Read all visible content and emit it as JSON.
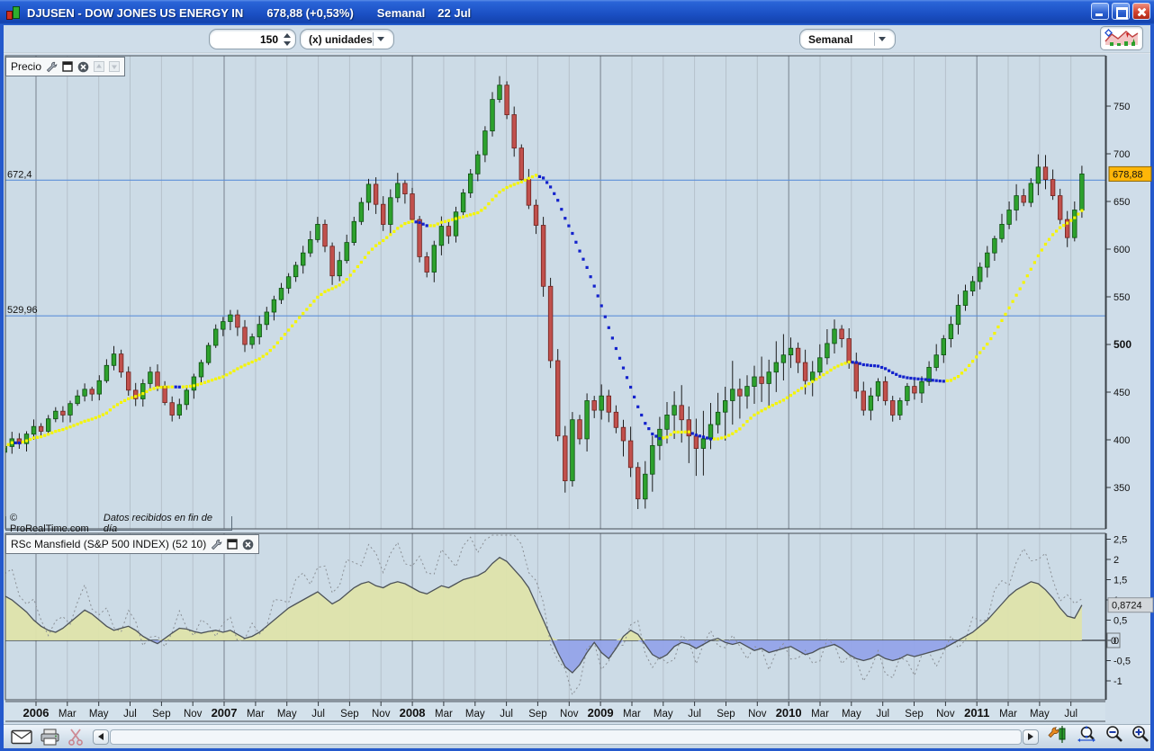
{
  "window": {
    "title": "DJUSEN - DOW JONES US ENERGY IN",
    "quote": "678,88 (+0,53%)",
    "timeframe": "Semanal",
    "date": "22 Jul"
  },
  "toolbar": {
    "units_value": "150",
    "units_mode": "(x) unidades",
    "period": "Semanal"
  },
  "price_panel": {
    "label": "Precio",
    "footer_copyright": "© ProRealTime.com",
    "footer_note": "Datos recibidos en fin de día"
  },
  "indicator_panel": {
    "label": "RSc Mansfield (S&P 500 INDEX) (52 10)"
  },
  "icons": [
    "candlestick-logo-icon",
    "minimize-icon",
    "maximize-icon",
    "close-icon",
    "chart-style-icon",
    "wrench-icon",
    "panel-icon",
    "close-circle-icon",
    "arrow-up-icon",
    "arrow-down-icon",
    "envelope-icon",
    "printer-icon",
    "scissors-icon",
    "scroll-left-icon",
    "scroll-right-icon",
    "chart-settings-icon",
    "zoom-fit-icon",
    "zoom-out-icon",
    "zoom-in-icon"
  ],
  "colors": {
    "panel_bg": "#ccdbe6",
    "grid_minor": "#b5c1cb",
    "grid_year": "#77818d",
    "level_line": "#5e90d8",
    "candle_up": "#2da12d",
    "candle_down": "#c1504c",
    "ma_up": "#f5f500",
    "ma_down": "#1322cc",
    "area_pos": "#dee4ab",
    "area_neg": "#94a4e9",
    "badge_price": "#ffb608",
    "badge_indicator": "#d3d7db"
  },
  "chart_data": {
    "type": "candlestick",
    "title": "DJUSEN - DOW JONES US ENERGY IN (Semanal)",
    "x": {
      "start_month": -2,
      "end_month": 66.7,
      "ticks": [
        {
          "m": 0,
          "label": "2006",
          "bold": true
        },
        {
          "m": 2,
          "label": "Mar"
        },
        {
          "m": 4,
          "label": "May"
        },
        {
          "m": 6,
          "label": "Jul"
        },
        {
          "m": 8,
          "label": "Sep"
        },
        {
          "m": 10,
          "label": "Nov"
        },
        {
          "m": 12,
          "label": "2007",
          "bold": true
        },
        {
          "m": 14,
          "label": "Mar"
        },
        {
          "m": 16,
          "label": "May"
        },
        {
          "m": 18,
          "label": "Jul"
        },
        {
          "m": 20,
          "label": "Sep"
        },
        {
          "m": 22,
          "label": "Nov"
        },
        {
          "m": 24,
          "label": "2008",
          "bold": true
        },
        {
          "m": 26,
          "label": "Mar"
        },
        {
          "m": 28,
          "label": "May"
        },
        {
          "m": 30,
          "label": "Jul"
        },
        {
          "m": 32,
          "label": "Sep"
        },
        {
          "m": 34,
          "label": "Nov"
        },
        {
          "m": 36,
          "label": "2009",
          "bold": true
        },
        {
          "m": 38,
          "label": "Mar"
        },
        {
          "m": 40,
          "label": "May"
        },
        {
          "m": 42,
          "label": "Jul"
        },
        {
          "m": 44,
          "label": "Sep"
        },
        {
          "m": 46,
          "label": "Nov"
        },
        {
          "m": 48,
          "label": "2010",
          "bold": true
        },
        {
          "m": 50,
          "label": "Mar"
        },
        {
          "m": 52,
          "label": "May"
        },
        {
          "m": 54,
          "label": "Jul"
        },
        {
          "m": 56,
          "label": "Sep"
        },
        {
          "m": 58,
          "label": "Nov"
        },
        {
          "m": 60,
          "label": "2011",
          "bold": true
        },
        {
          "m": 62,
          "label": "Mar"
        },
        {
          "m": 64,
          "label": "May"
        },
        {
          "m": 66,
          "label": "Jul"
        }
      ]
    },
    "price": {
      "ylim": [
        306,
        803
      ],
      "axis_ticks": [
        750,
        700,
        650,
        600,
        550,
        500,
        450,
        400,
        350
      ],
      "bold_tick": 500,
      "levels": [
        672.4,
        529.96
      ],
      "last": 678.88,
      "ma_window": 15,
      "closes": [
        393,
        401,
        396,
        406,
        414,
        409,
        422,
        430,
        426,
        438,
        446,
        453,
        448,
        462,
        478,
        490,
        471,
        452,
        443,
        459,
        471,
        456,
        439,
        426,
        437,
        452,
        466,
        481,
        499,
        516,
        524,
        531,
        518,
        500,
        508,
        521,
        534,
        547,
        559,
        571,
        583,
        596,
        610,
        626,
        603,
        572,
        588,
        607,
        629,
        649,
        668,
        647,
        626,
        654,
        669,
        658,
        631,
        592,
        576,
        604,
        624,
        614,
        639,
        659,
        679,
        699,
        724,
        757,
        772,
        741,
        706,
        673,
        646,
        625,
        561,
        483,
        404,
        357,
        421,
        401,
        441,
        431,
        446,
        429,
        413,
        399,
        371,
        338,
        364,
        394,
        411,
        426,
        436,
        421,
        404,
        391,
        401,
        416,
        429,
        441,
        453,
        446,
        456,
        466,
        459,
        471,
        481,
        489,
        496,
        481,
        462,
        471,
        486,
        501,
        516,
        506,
        481,
        451,
        431,
        446,
        461,
        441,
        426,
        441,
        456,
        449,
        461,
        476,
        489,
        506,
        521,
        541,
        556,
        566,
        581,
        596,
        611,
        626,
        641,
        656,
        649,
        669,
        686,
        673,
        656,
        631,
        612,
        641,
        678.88
      ],
      "volatility_keypoints": [
        [
          0,
          11
        ],
        [
          25,
          12
        ],
        [
          40,
          13
        ],
        [
          56,
          15
        ],
        [
          66,
          14
        ],
        [
          80,
          18
        ],
        [
          88,
          26
        ],
        [
          95,
          40
        ],
        [
          100,
          48
        ],
        [
          104,
          42
        ],
        [
          108,
          26
        ],
        [
          114,
          20
        ],
        [
          120,
          14
        ],
        [
          128,
          16
        ],
        [
          136,
          15
        ],
        [
          142,
          18
        ],
        [
          148,
          13
        ]
      ]
    },
    "indicator": {
      "name": "RSc Mansfield (S&P 500 INDEX) (52 10)",
      "ylim": [
        -1.47,
        2.64
      ],
      "axis_ticks": [
        2.5,
        2,
        1.5,
        1,
        0.5,
        0,
        -0.5,
        -1
      ],
      "zero_label": 0,
      "last": 0.8724,
      "dashed": {
        "scale": 1.5,
        "amp": 0.28,
        "freq": 1.9
      },
      "values": [
        1.1,
        1.0,
        0.85,
        0.7,
        0.5,
        0.35,
        0.25,
        0.2,
        0.3,
        0.45,
        0.6,
        0.75,
        0.65,
        0.5,
        0.35,
        0.25,
        0.3,
        0.35,
        0.25,
        0.1,
        0.0,
        -0.08,
        0.05,
        0.18,
        0.3,
        0.28,
        0.22,
        0.18,
        0.22,
        0.25,
        0.2,
        0.25,
        0.15,
        0.05,
        0.1,
        0.2,
        0.35,
        0.5,
        0.65,
        0.8,
        0.9,
        1.0,
        1.1,
        1.2,
        1.05,
        0.9,
        1.0,
        1.15,
        1.3,
        1.4,
        1.45,
        1.35,
        1.3,
        1.4,
        1.45,
        1.4,
        1.3,
        1.2,
        1.15,
        1.25,
        1.35,
        1.3,
        1.4,
        1.5,
        1.55,
        1.6,
        1.7,
        1.9,
        2.05,
        1.95,
        1.75,
        1.55,
        1.3,
        0.9,
        0.5,
        0.1,
        -0.3,
        -0.65,
        -0.8,
        -0.6,
        -0.3,
        -0.05,
        -0.3,
        -0.45,
        -0.2,
        0.1,
        0.25,
        0.15,
        -0.1,
        -0.35,
        -0.45,
        -0.35,
        -0.15,
        -0.05,
        -0.1,
        -0.2,
        -0.1,
        0.0,
        0.05,
        -0.05,
        -0.1,
        -0.05,
        -0.15,
        -0.25,
        -0.2,
        -0.3,
        -0.25,
        -0.2,
        -0.15,
        -0.25,
        -0.35,
        -0.3,
        -0.2,
        -0.15,
        -0.1,
        -0.2,
        -0.35,
        -0.45,
        -0.5,
        -0.45,
        -0.35,
        -0.45,
        -0.5,
        -0.45,
        -0.35,
        -0.4,
        -0.35,
        -0.3,
        -0.25,
        -0.2,
        -0.1,
        0.0,
        0.1,
        0.2,
        0.35,
        0.5,
        0.7,
        0.9,
        1.1,
        1.25,
        1.35,
        1.45,
        1.4,
        1.25,
        1.05,
        0.8,
        0.6,
        0.55,
        0.8724
      ]
    }
  }
}
